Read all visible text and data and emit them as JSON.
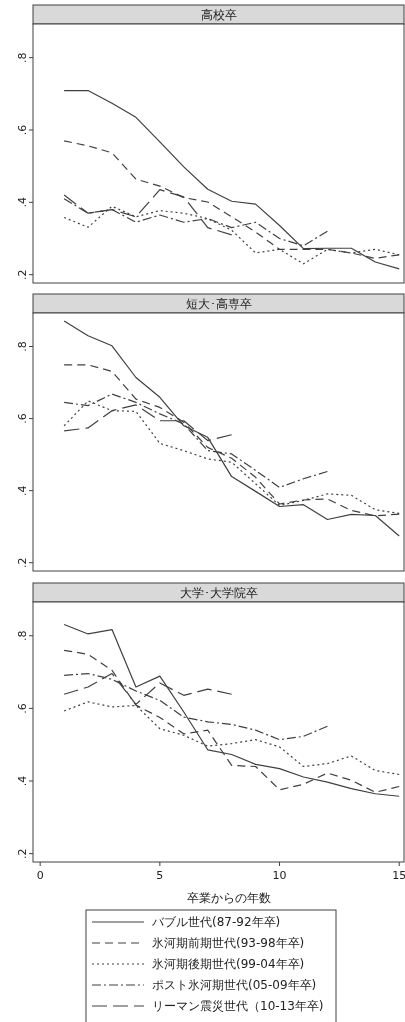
{
  "chart_data": [
    {
      "type": "line",
      "title": "高校卒",
      "xlim": [
        -0.3,
        15.2
      ],
      "ylim": [
        0.177,
        0.893
      ],
      "xticks": [
        0,
        5,
        10,
        15
      ],
      "yticks": [
        {
          "value": 0.2,
          "label": ".2"
        },
        {
          "value": 0.4,
          "label": ".4"
        },
        {
          "value": 0.6,
          "label": ".6"
        },
        {
          "value": 0.8,
          "label": ".8"
        }
      ],
      "tick_labels": "y",
      "x": [
        1,
        2,
        3,
        4,
        5,
        6,
        7,
        8,
        9,
        10,
        11,
        12,
        13,
        14,
        15
      ],
      "series": [
        {
          "color": "#404040",
          "line_style": "solid",
          "values": [
            0.709,
            0.709,
            0.674,
            0.635,
            0.567,
            0.498,
            0.436,
            0.403,
            0.395,
            0.336,
            0.272,
            0.273,
            0.273,
            0.235,
            0.216
          ]
        },
        {
          "color": "#404040",
          "line_style": "dashed",
          "values": [
            0.57,
            0.556,
            0.537,
            0.464,
            0.445,
            0.413,
            0.401,
            0.36,
            0.318,
            0.27,
            0.27,
            0.27,
            0.26,
            0.245,
            0.255
          ]
        },
        {
          "color": "#404040",
          "line_style": "dotted",
          "values": [
            0.358,
            0.331,
            0.389,
            0.36,
            0.377,
            0.37,
            0.355,
            0.323,
            0.26,
            0.27,
            0.23,
            0.27,
            0.26,
            0.27,
            0.255
          ]
        },
        {
          "color": "#404040",
          "line_style": "dashdot",
          "values": [
            0.41,
            0.37,
            0.38,
            0.345,
            0.365,
            0.345,
            0.355,
            0.33,
            0.345,
            0.3,
            0.28,
            0.32,
            null,
            null,
            null
          ]
        },
        {
          "color": "#404040",
          "line_style": "longdash",
          "values": [
            0.42,
            0.37,
            0.38,
            0.36,
            0.435,
            0.415,
            0.33,
            0.31,
            null,
            null,
            null,
            null,
            null,
            null,
            null
          ]
        }
      ]
    },
    {
      "type": "line",
      "title": "短大･高専卒",
      "xlim": [
        -0.3,
        15.2
      ],
      "ylim": [
        0.177,
        0.893
      ],
      "xticks": [
        0,
        5,
        10,
        15
      ],
      "yticks": [
        {
          "value": 0.2,
          "label": ".2"
        },
        {
          "value": 0.4,
          "label": ".4"
        },
        {
          "value": 0.6,
          "label": ".6"
        },
        {
          "value": 0.8,
          "label": ".8"
        }
      ],
      "tick_labels": "y",
      "x": [
        1,
        2,
        3,
        4,
        5,
        6,
        7,
        8,
        9,
        10,
        11,
        12,
        13,
        14,
        15
      ],
      "series": [
        {
          "color": "#404040",
          "line_style": "solid",
          "values": [
            0.871,
            0.83,
            0.802,
            0.714,
            0.659,
            0.58,
            0.548,
            0.439,
            0.398,
            0.356,
            0.361,
            0.32,
            0.334,
            0.331,
            0.274
          ]
        },
        {
          "color": "#404040",
          "line_style": "dashed",
          "values": [
            0.749,
            0.749,
            0.731,
            0.654,
            0.631,
            0.59,
            0.52,
            0.49,
            0.437,
            0.363,
            0.374,
            0.377,
            0.345,
            0.33,
            0.335
          ]
        },
        {
          "color": "#404040",
          "line_style": "dotted",
          "values": [
            0.58,
            0.649,
            0.622,
            0.62,
            0.531,
            0.511,
            0.488,
            0.479,
            0.419,
            0.359,
            0.373,
            0.391,
            0.387,
            0.347,
            0.337
          ]
        },
        {
          "color": "#404040",
          "line_style": "dashdot",
          "values": [
            0.645,
            0.636,
            0.668,
            0.645,
            0.613,
            0.585,
            0.511,
            0.502,
            0.456,
            0.409,
            0.433,
            0.453,
            null,
            null,
            null
          ]
        },
        {
          "color": "#404040",
          "line_style": "longdash",
          "values": [
            0.566,
            0.574,
            0.622,
            0.638,
            0.594,
            0.594,
            0.539,
            0.555,
            null,
            null,
            null,
            null,
            null,
            null,
            null
          ]
        }
      ]
    },
    {
      "type": "line",
      "title": "大学･大学院卒",
      "xlabel": "卒業からの年数",
      "xlim": [
        -0.3,
        15.2
      ],
      "ylim": [
        0.177,
        0.893
      ],
      "xticks": [
        0,
        5,
        10,
        15
      ],
      "yticks": [
        {
          "value": 0.2,
          "label": ".2"
        },
        {
          "value": 0.4,
          "label": ".4"
        },
        {
          "value": 0.6,
          "label": ".6"
        },
        {
          "value": 0.8,
          "label": ".8"
        }
      ],
      "legend": "bottom",
      "x": [
        1,
        2,
        3,
        4,
        5,
        6,
        7,
        8,
        9,
        10,
        11,
        12,
        13,
        14,
        15
      ],
      "series": [
        {
          "name": "バブル世代(87-92年卒)",
          "color": "#404040",
          "line_style": "solid",
          "values": [
            0.831,
            0.805,
            0.817,
            0.659,
            0.689,
            0.59,
            0.486,
            0.473,
            0.446,
            0.434,
            0.411,
            0.397,
            0.379,
            0.365,
            0.358
          ]
        },
        {
          "name": "氷河期前期世代(93-98年卒)",
          "color": "#404040",
          "line_style": "dashed",
          "values": [
            0.76,
            0.749,
            0.705,
            0.609,
            0.575,
            0.53,
            0.54,
            0.443,
            0.44,
            0.376,
            0.391,
            0.422,
            0.402,
            0.369,
            0.385
          ]
        },
        {
          "name": "氷河期後期世代(99-04年卒)",
          "color": "#404040",
          "line_style": "dotted",
          "values": [
            0.593,
            0.618,
            0.604,
            0.608,
            0.544,
            0.526,
            0.496,
            0.503,
            0.514,
            0.494,
            0.44,
            0.448,
            0.469,
            0.429,
            0.418
          ]
        },
        {
          "name": "ポスト氷河期世代(05-09年卒)",
          "color": "#404040",
          "line_style": "dashdot",
          "values": [
            0.691,
            0.696,
            0.68,
            0.648,
            0.622,
            0.576,
            0.563,
            0.556,
            0.54,
            0.514,
            0.523,
            0.551,
            null,
            null,
            null
          ]
        },
        {
          "name": "リーマン震災世代（10-13年卒)",
          "color": "#404040",
          "line_style": "longdash",
          "values": [
            0.639,
            0.659,
            0.696,
            0.611,
            0.67,
            0.636,
            0.653,
            0.639,
            null,
            null,
            null,
            null,
            null,
            null,
            null
          ]
        }
      ]
    }
  ]
}
